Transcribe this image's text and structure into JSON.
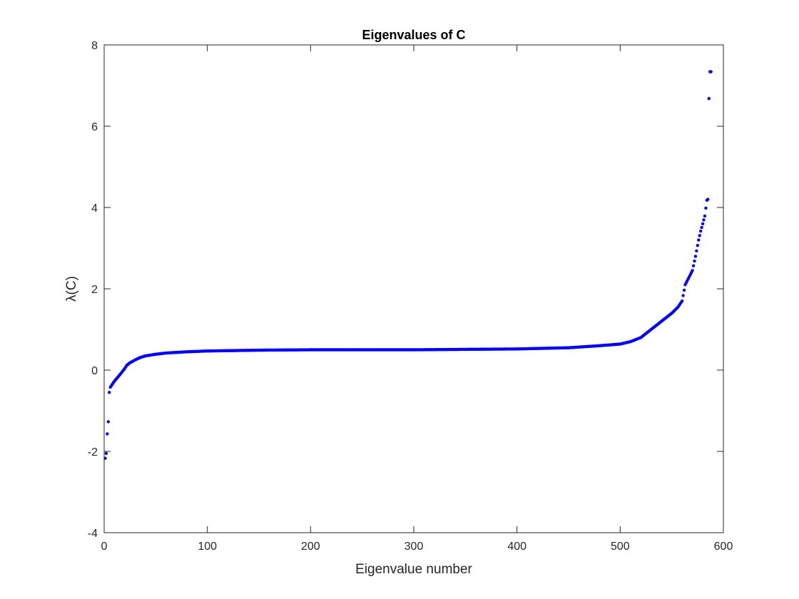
{
  "chart_data": {
    "type": "scatter",
    "title": "Eigenvalues of C",
    "xlabel": "Eigenvalue number",
    "ylabel": "λ(C)",
    "xlim": [
      0,
      600
    ],
    "ylim": [
      -4,
      8
    ],
    "xticks": [
      0,
      100,
      200,
      300,
      400,
      500,
      600
    ],
    "yticks": [
      -4,
      -2,
      0,
      2,
      4,
      6,
      8
    ],
    "xtick_labels": [
      "0",
      "100",
      "200",
      "300",
      "400",
      "500",
      "600"
    ],
    "ytick_labels": [
      "-4",
      "-2",
      "0",
      "2",
      "4",
      "6",
      "8"
    ],
    "grid": false,
    "marker_color": "#0000ff",
    "series": [
      {
        "n_points": 588,
        "x": [
          1,
          2,
          3,
          4,
          5,
          6,
          10,
          15,
          20,
          22,
          25,
          30,
          35,
          40,
          50,
          60,
          80,
          100,
          150,
          200,
          250,
          300,
          350,
          400,
          450,
          480,
          500,
          510,
          520,
          530,
          540,
          550,
          556,
          560,
          563,
          567,
          570,
          573,
          576,
          578,
          580,
          582,
          584,
          585,
          586,
          587,
          588
        ],
        "y": [
          -2.17,
          -2.05,
          -1.57,
          -1.27,
          -0.55,
          -0.42,
          -0.27,
          -0.12,
          0.04,
          0.12,
          0.18,
          0.25,
          0.31,
          0.35,
          0.39,
          0.42,
          0.45,
          0.47,
          0.49,
          0.5,
          0.5,
          0.5,
          0.51,
          0.52,
          0.55,
          0.6,
          0.64,
          0.7,
          0.8,
          1.0,
          1.2,
          1.4,
          1.55,
          1.7,
          2.1,
          2.3,
          2.45,
          2.8,
          3.2,
          3.42,
          3.6,
          3.79,
          4.18,
          4.2,
          6.68,
          7.34,
          7.34
        ]
      }
    ]
  }
}
